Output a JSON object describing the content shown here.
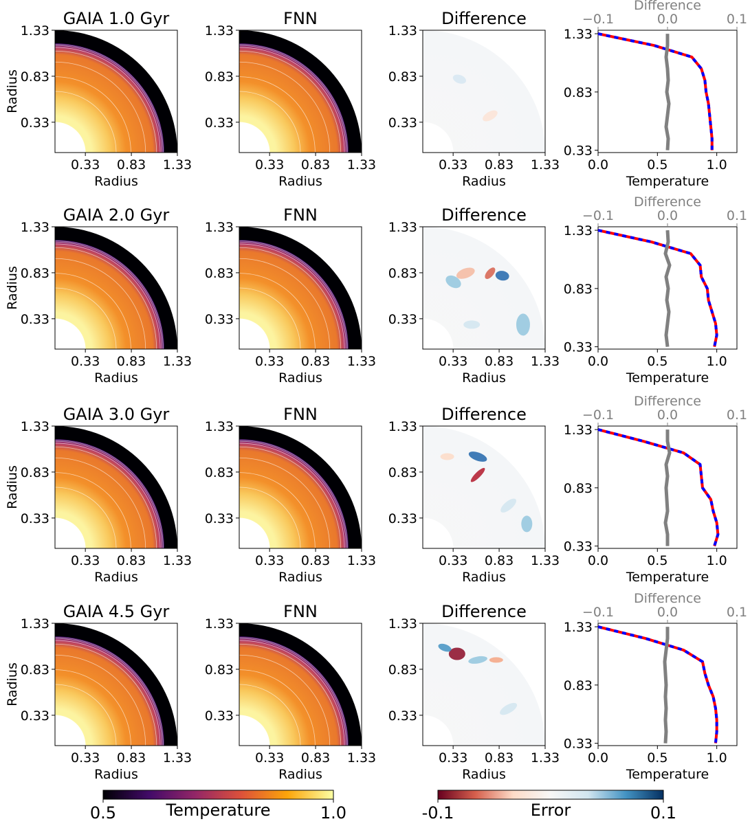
{
  "chart_data": [
    {
      "type": "image",
      "title": "GAIA 1.0 Gyr",
      "xlabel": "Radius",
      "ylabel": "Radius",
      "xlim": [
        0,
        1.33
      ],
      "ylim": [
        0,
        1.33
      ],
      "xticks": [
        0.33,
        0.83,
        1.33
      ],
      "yticks": [
        0.33,
        0.83,
        1.33
      ],
      "colormap": "inferno"
    },
    {
      "type": "image",
      "title": "FNN",
      "xlabel": "Radius",
      "xlim": [
        0,
        1.33
      ],
      "ylim": [
        0,
        1.33
      ],
      "xticks": [
        0.33,
        0.83,
        1.33
      ],
      "yticks": [
        0.33,
        0.83,
        1.33
      ],
      "colormap": "inferno"
    },
    {
      "type": "image",
      "title": "Difference",
      "xlabel": "Radius",
      "xlim": [
        0,
        1.33
      ],
      "ylim": [
        0,
        1.33
      ],
      "xticks": [
        0.33,
        0.83,
        1.33
      ],
      "yticks": [
        0.33,
        0.83,
        1.33
      ],
      "colormap": "RdBu"
    },
    {
      "type": "line",
      "xlabel": "Temperature",
      "x2label": "Difference",
      "xlim": [
        0,
        1.17
      ],
      "x2lim": [
        -0.1,
        0.1
      ],
      "ylim": [
        0.31,
        1.36
      ],
      "xticks": [
        {
          "value": 0,
          "label": "0.0"
        },
        0.5,
        {
          "value": 1,
          "label": "1.0"
        }
      ],
      "x2ticks": [
        {
          "value": -0.1,
          "label": "−0.1"
        },
        {
          "value": 0,
          "label": "0.0"
        },
        0.1
      ],
      "yticks": [
        0.33,
        0.83,
        1.33
      ],
      "y": [
        1.33,
        1.23,
        1.13,
        1.03,
        0.93,
        0.83,
        0.73,
        0.63,
        0.53,
        0.43,
        0.33
      ],
      "series": [
        {
          "color": "#ff0000",
          "values": [
            0,
            0.47,
            0.79,
            0.87,
            0.9,
            0.91,
            0.93,
            0.94,
            0.95,
            0.96,
            0.96
          ]
        },
        {
          "color": "#0000ff",
          "linestyle": "dashed",
          "values": [
            0,
            0.47,
            0.79,
            0.87,
            0.9,
            0.91,
            0.93,
            0.94,
            0.95,
            0.96,
            0.96
          ]
        },
        {
          "color": "#808080",
          "axis": "x2",
          "values": [
            0.0,
            0.0,
            -0.002,
            0.0,
            0.001,
            -0.001,
            0.002,
            0.0,
            -0.002,
            0.001,
            0.0
          ]
        }
      ]
    },
    {
      "type": "image",
      "title": "GAIA 2.0 Gyr",
      "xlabel": "Radius",
      "ylabel": "Radius",
      "xlim": [
        0,
        1.33
      ],
      "ylim": [
        0,
        1.33
      ],
      "xticks": [
        0.33,
        0.83,
        1.33
      ],
      "yticks": [
        0.33,
        0.83,
        1.33
      ],
      "colormap": "inferno"
    },
    {
      "type": "image",
      "title": "FNN",
      "xlabel": "Radius",
      "xlim": [
        0,
        1.33
      ],
      "ylim": [
        0,
        1.33
      ],
      "xticks": [
        0.33,
        0.83,
        1.33
      ],
      "yticks": [
        0.33,
        0.83,
        1.33
      ],
      "colormap": "inferno"
    },
    {
      "type": "image",
      "title": "Difference",
      "xlabel": "Radius",
      "xlim": [
        0,
        1.33
      ],
      "ylim": [
        0,
        1.33
      ],
      "xticks": [
        0.33,
        0.83,
        1.33
      ],
      "yticks": [
        0.33,
        0.83,
        1.33
      ],
      "colormap": "RdBu"
    },
    {
      "type": "line",
      "xlabel": "Temperature",
      "x2label": "Difference",
      "xlim": [
        0,
        1.17
      ],
      "x2lim": [
        -0.1,
        0.1
      ],
      "ylim": [
        0.31,
        1.36
      ],
      "xticks": [
        {
          "value": 0,
          "label": "0.0"
        },
        0.5,
        {
          "value": 1,
          "label": "1.0"
        }
      ],
      "x2ticks": [
        {
          "value": -0.1,
          "label": "−0.1"
        },
        {
          "value": 0,
          "label": "0.0"
        },
        0.1
      ],
      "yticks": [
        0.33,
        0.83,
        1.33
      ],
      "y": [
        1.33,
        1.23,
        1.13,
        1.03,
        0.93,
        0.83,
        0.73,
        0.63,
        0.53,
        0.43,
        0.33
      ],
      "series": [
        {
          "color": "#ff0000",
          "values": [
            0,
            0.45,
            0.78,
            0.86,
            0.87,
            0.92,
            0.93,
            0.96,
            0.99,
            1.0,
            0.98
          ]
        },
        {
          "color": "#0000ff",
          "linestyle": "dashed",
          "values": [
            0,
            0.45,
            0.78,
            0.86,
            0.87,
            0.92,
            0.93,
            0.96,
            0.99,
            1.0,
            0.98
          ]
        },
        {
          "color": "#808080",
          "axis": "x2",
          "values": [
            0.0,
            0.001,
            -0.003,
            0.003,
            -0.002,
            0.001,
            -0.001,
            0.002,
            0.0,
            -0.002,
            0.0
          ]
        }
      ]
    },
    {
      "type": "image",
      "title": "GAIA 3.0 Gyr",
      "xlabel": "Radius",
      "ylabel": "Radius",
      "xlim": [
        0,
        1.33
      ],
      "ylim": [
        0,
        1.33
      ],
      "xticks": [
        0.33,
        0.83,
        1.33
      ],
      "yticks": [
        0.33,
        0.83,
        1.33
      ],
      "colormap": "inferno"
    },
    {
      "type": "image",
      "title": "FNN",
      "xlabel": "Radius",
      "xlim": [
        0,
        1.33
      ],
      "ylim": [
        0,
        1.33
      ],
      "xticks": [
        0.33,
        0.83,
        1.33
      ],
      "yticks": [
        0.33,
        0.83,
        1.33
      ],
      "colormap": "inferno"
    },
    {
      "type": "image",
      "title": "Difference",
      "xlabel": "Radius",
      "xlim": [
        0,
        1.33
      ],
      "ylim": [
        0,
        1.33
      ],
      "xticks": [
        0.33,
        0.83,
        1.33
      ],
      "yticks": [
        0.33,
        0.83,
        1.33
      ],
      "colormap": "RdBu"
    },
    {
      "type": "line",
      "xlabel": "Temperature",
      "x2label": "Difference",
      "xlim": [
        0,
        1.17
      ],
      "x2lim": [
        -0.1,
        0.1
      ],
      "ylim": [
        0.31,
        1.36
      ],
      "xticks": [
        {
          "value": 0,
          "label": "0.0"
        },
        0.5,
        {
          "value": 1,
          "label": "1.0"
        }
      ],
      "x2ticks": [
        {
          "value": -0.1,
          "label": "−0.1"
        },
        {
          "value": 0,
          "label": "0.0"
        },
        0.1
      ],
      "yticks": [
        0.33,
        0.83,
        1.33
      ],
      "y": [
        1.33,
        1.23,
        1.13,
        1.03,
        0.93,
        0.83,
        0.73,
        0.63,
        0.53,
        0.43,
        0.33
      ],
      "series": [
        {
          "color": "#ff0000",
          "values": [
            0,
            0.38,
            0.72,
            0.86,
            0.87,
            0.88,
            0.95,
            0.97,
            1.0,
            1.01,
            0.98
          ]
        },
        {
          "color": "#0000ff",
          "linestyle": "dashed",
          "values": [
            0,
            0.38,
            0.72,
            0.86,
            0.87,
            0.88,
            0.95,
            0.97,
            1.0,
            1.01,
            0.98
          ]
        },
        {
          "color": "#808080",
          "axis": "x2",
          "values": [
            0.0,
            0.0,
            0.003,
            -0.002,
            0.0,
            -0.002,
            -0.001,
            0.0,
            -0.003,
            0.0,
            0.0
          ]
        }
      ]
    },
    {
      "type": "image",
      "title": "GAIA 4.5 Gyr",
      "xlabel": "Radius",
      "ylabel": "Radius",
      "xlim": [
        0,
        1.33
      ],
      "ylim": [
        0,
        1.33
      ],
      "xticks": [
        0.33,
        0.83,
        1.33
      ],
      "yticks": [
        0.33,
        0.83,
        1.33
      ],
      "colormap": "inferno"
    },
    {
      "type": "image",
      "title": "FNN",
      "xlabel": "Radius",
      "xlim": [
        0,
        1.33
      ],
      "ylim": [
        0,
        1.33
      ],
      "xticks": [
        0.33,
        0.83,
        1.33
      ],
      "yticks": [
        0.33,
        0.83,
        1.33
      ],
      "colormap": "inferno"
    },
    {
      "type": "image",
      "title": "Difference",
      "xlabel": "Radius",
      "xlim": [
        0,
        1.33
      ],
      "ylim": [
        0,
        1.33
      ],
      "xticks": [
        0.33,
        0.83,
        1.33
      ],
      "yticks": [
        0.33,
        0.83,
        1.33
      ],
      "colormap": "RdBu"
    },
    {
      "type": "line",
      "xlabel": "Temperature",
      "x2label": "Difference",
      "xlim": [
        0,
        1.17
      ],
      "x2lim": [
        -0.1,
        0.1
      ],
      "ylim": [
        0.31,
        1.36
      ],
      "xticks": [
        {
          "value": 0,
          "label": "0.0"
        },
        0.5,
        {
          "value": 1,
          "label": "1.0"
        }
      ],
      "x2ticks": [
        {
          "value": -0.1,
          "label": "−0.1"
        },
        {
          "value": 0,
          "label": "0.0"
        },
        0.1
      ],
      "yticks": [
        0.33,
        0.83,
        1.33
      ],
      "y": [
        1.33,
        1.23,
        1.13,
        1.03,
        0.93,
        0.83,
        0.73,
        0.63,
        0.53,
        0.43,
        0.33
      ],
      "series": [
        {
          "color": "#ff0000",
          "values": [
            0,
            0.4,
            0.72,
            0.88,
            0.9,
            0.93,
            0.97,
            0.99,
            1.0,
            1.0,
            0.99
          ]
        },
        {
          "color": "#0000ff",
          "linestyle": "dashed",
          "values": [
            0,
            0.4,
            0.72,
            0.88,
            0.9,
            0.93,
            0.97,
            0.99,
            1.0,
            1.0,
            0.99
          ]
        },
        {
          "color": "#808080",
          "axis": "x2",
          "values": [
            0.0,
            0.0,
            -0.002,
            -0.004,
            -0.003,
            -0.002,
            -0.003,
            -0.002,
            -0.003,
            -0.002,
            -0.003
          ]
        }
      ]
    },
    {
      "type": "colorbar",
      "label": "Temperature",
      "lim": [
        0.5,
        1.0
      ],
      "ticks": [
        0.5,
        {
          "value": 1,
          "label": "1.0"
        }
      ],
      "colormap": "inferno"
    },
    {
      "type": "colorbar",
      "label": "Error",
      "lim": [
        -0.1,
        0.1
      ],
      "ticks": [
        -0.1,
        0.1
      ],
      "colormap": "RdBu"
    }
  ]
}
